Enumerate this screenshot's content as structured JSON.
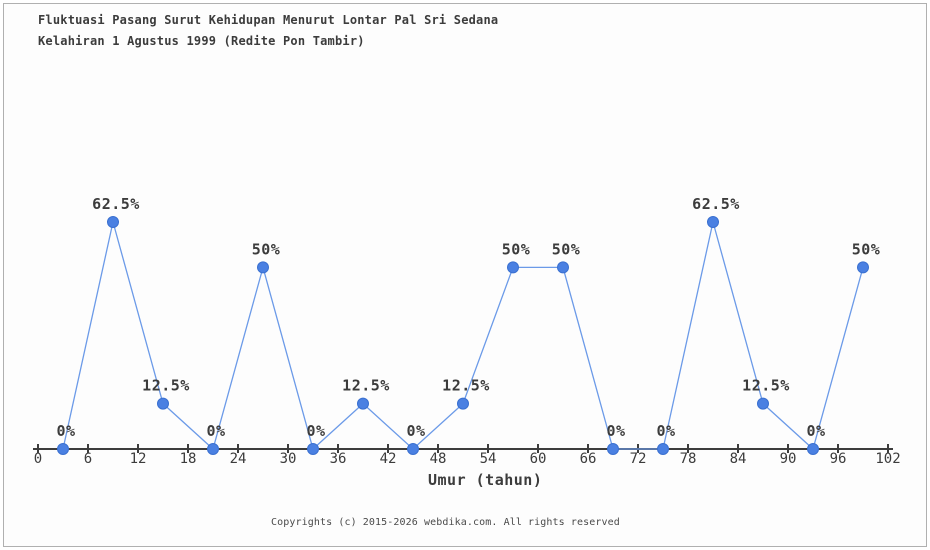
{
  "header": {
    "title_line1": "Fluktuasi Pasang Surut Kehidupan Menurut Lontar Pal Sri Sedana",
    "title_line2": "Kelahiran 1 Agustus 1999 (Redite Pon Tambir)"
  },
  "chart_data": {
    "type": "line",
    "title": "Fluktuasi Pasang Surut Kehidupan Menurut Lontar Pal Sri Sedana Kelahiran 1 Agustus 1999 (Redite Pon Tambir)",
    "x": [
      3,
      9,
      15,
      21,
      27,
      33,
      39,
      45,
      51,
      57,
      63,
      69,
      75,
      81,
      87,
      93,
      99
    ],
    "values": [
      0,
      62.5,
      12.5,
      0,
      50,
      0,
      12.5,
      0,
      12.5,
      50,
      50,
      0,
      0,
      62.5,
      12.5,
      0,
      50
    ],
    "point_labels": [
      "0%",
      "62.5%",
      "12.5%",
      "0%",
      "50%",
      "0%",
      "12.5%",
      "0%",
      "12.5%",
      "50%",
      "50%",
      "0%",
      "0%",
      "62.5%",
      "12.5%",
      "0%",
      "50%"
    ],
    "x_ticks": [
      0,
      6,
      12,
      18,
      24,
      30,
      36,
      42,
      48,
      54,
      60,
      66,
      72,
      78,
      84,
      90,
      96,
      102
    ],
    "xlabel": "Umur (tahun)",
    "ylabel": "",
    "xlim": [
      0,
      102
    ],
    "ylim": [
      0,
      100
    ],
    "grid": false,
    "legend": false,
    "colors": {
      "marker_fill": "#4a80e2",
      "marker_edge": "#3a70d0",
      "line": "#6b9ae8",
      "axis": "#3d3d3d",
      "text": "#3c3c3c"
    }
  },
  "footer": {
    "copyright": "Copyrights (c) 2015-2026 webdika.com. All rights reserved"
  }
}
